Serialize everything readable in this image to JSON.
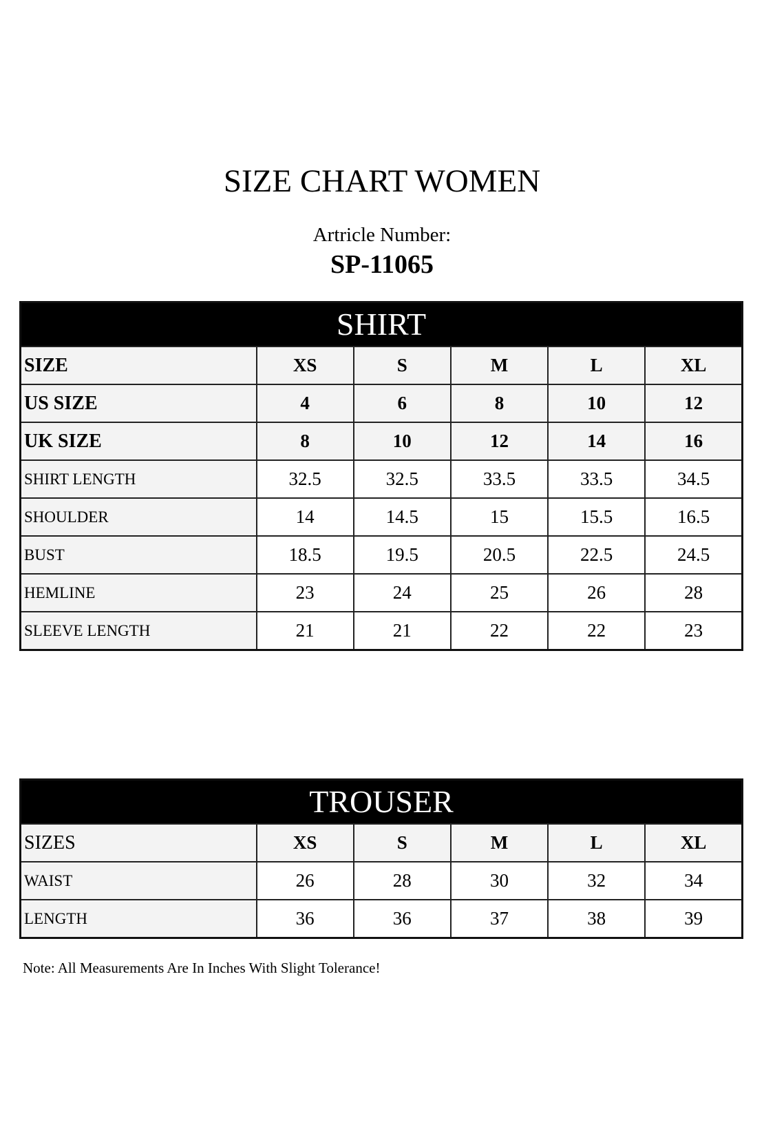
{
  "title": "SIZE CHART WOMEN",
  "article_label": "Artricle Number:",
  "article_number": "SP-11065",
  "shirt": {
    "heading": "SHIRT",
    "rows": [
      {
        "label": "SIZE",
        "values": [
          "XS",
          "S",
          "M",
          "L",
          "XL"
        ],
        "header": true
      },
      {
        "label": "US SIZE",
        "values": [
          "4",
          "6",
          "8",
          "10",
          "12"
        ],
        "header": true
      },
      {
        "label": "UK SIZE",
        "values": [
          "8",
          "10",
          "12",
          "14",
          "16"
        ],
        "header": true
      },
      {
        "label": "SHIRT LENGTH",
        "values": [
          "32.5",
          "32.5",
          "33.5",
          "33.5",
          "34.5"
        ]
      },
      {
        "label": "SHOULDER",
        "values": [
          "14",
          "14.5",
          "15",
          "15.5",
          "16.5"
        ]
      },
      {
        "label": "BUST",
        "values": [
          "18.5",
          "19.5",
          "20.5",
          "22.5",
          "24.5"
        ]
      },
      {
        "label": "HEMLINE",
        "values": [
          "23",
          "24",
          "25",
          "26",
          "28"
        ]
      },
      {
        "label": "SLEEVE LENGTH",
        "values": [
          "21",
          "21",
          "22",
          "22",
          "23"
        ]
      }
    ]
  },
  "trouser": {
    "heading": "TROUSER",
    "rows": [
      {
        "label": "SIZES",
        "values": [
          "XS",
          "S",
          "M",
          "L",
          "XL"
        ],
        "header": true
      },
      {
        "label": "WAIST",
        "values": [
          "26",
          "28",
          "30",
          "32",
          "34"
        ]
      },
      {
        "label": "LENGTH",
        "values": [
          "36",
          "36",
          "37",
          "38",
          "39"
        ]
      }
    ]
  },
  "note": "Note: All Measurements Are In Inches With Slight Tolerance!"
}
